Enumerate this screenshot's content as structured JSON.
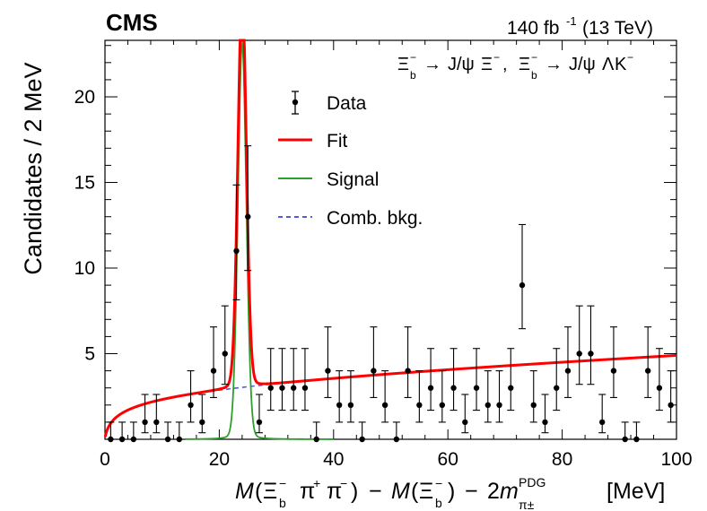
{
  "header": {
    "experiment": "CMS",
    "lumi": "140 fb",
    "lumi_exp": "-1",
    "energy": "(13 TeV)"
  },
  "process": {
    "xi": "Ξ",
    "sub": "b",
    "sup": "−",
    "arrow": "→",
    "jpsi": "J/ψ",
    "lambda": "Λ",
    "kaon": "K",
    "comma": ","
  },
  "xlabel_parts": {
    "m": "M",
    "open": "(",
    "xi": "Ξ",
    "sub": "b",
    "minus": "−",
    "pi": "π",
    "plus": "+",
    "close": ")",
    "two": "2",
    "pdg": "PDG",
    "pipm": "π±",
    "unit": "[MeV]"
  },
  "chart_data": {
    "type": "scatter",
    "title": "",
    "xlabel": "M(Ξb− π+ π−) − M(Ξb−) − 2m_π±^PDG [MeV]",
    "ylabel": "Candidates / 2 MeV",
    "xlim": [
      0,
      100
    ],
    "ylim": [
      0,
      23.3
    ],
    "xticks": [
      0,
      20,
      40,
      60,
      80,
      100
    ],
    "yticks": [
      5,
      10,
      15,
      20
    ],
    "legend": [
      "Data",
      "Fit",
      "Signal",
      "Comb. bkg."
    ],
    "colors": {
      "data": "#000000",
      "fit": "#ff0000",
      "signal": "#2ca02c",
      "bkg": "#5a5ad6"
    },
    "data": {
      "x": [
        1,
        3,
        5,
        7,
        9,
        11,
        13,
        15,
        17,
        19,
        21,
        23,
        25,
        27,
        29,
        31,
        33,
        35,
        37,
        39,
        41,
        43,
        45,
        47,
        49,
        51,
        53,
        55,
        57,
        59,
        61,
        63,
        65,
        67,
        69,
        71,
        73,
        75,
        77,
        79,
        81,
        83,
        85,
        87,
        89,
        91,
        93,
        95,
        97,
        99
      ],
      "y": [
        0,
        0,
        0,
        1,
        1,
        0,
        0,
        2,
        1,
        4,
        5,
        11,
        13,
        1,
        3,
        3,
        3,
        3,
        0,
        4,
        2,
        2,
        0,
        4,
        2,
        0,
        4,
        2,
        3,
        2,
        3,
        1,
        3,
        2,
        2,
        3,
        9,
        2,
        1,
        3,
        4,
        5,
        5,
        1,
        4,
        0,
        0,
        4,
        3,
        2
      ]
    },
    "fit_model": {
      "signal": {
        "mean": 24.0,
        "sigma": 0.75,
        "peak": 21.0,
        "tail_gamma": 0.7,
        "tail_amp": 0.35
      },
      "background": {
        "threshold": 0,
        "slope_log": 0.62,
        "linear": 0.013,
        "offset": 0.06
      }
    }
  }
}
